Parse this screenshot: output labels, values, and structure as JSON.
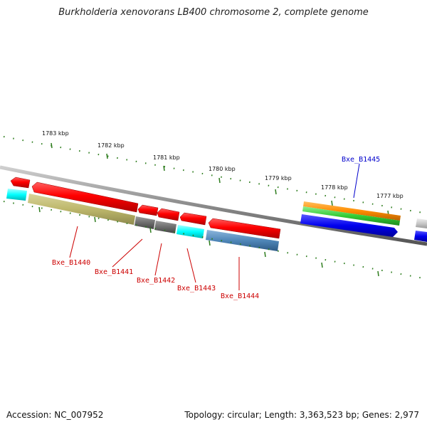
{
  "title": "Burkholderia xenovorans LB400 chromosome 2, complete genome",
  "footer": {
    "accession": "Accession: NC_007952",
    "summary": "Topology: circular; Length: 3,363,523 bp; Genes: 2,977"
  },
  "ruler_unit": "kbp",
  "ruler_ticks": [
    {
      "kbp": 1783,
      "label": "1783 kbp"
    },
    {
      "kbp": 1782,
      "label": "1782 kbp"
    },
    {
      "kbp": 1781,
      "label": "1781 kbp"
    },
    {
      "kbp": 1780,
      "label": "1780 kbp"
    },
    {
      "kbp": 1779,
      "label": "1779 kbp"
    },
    {
      "kbp": 1778,
      "label": "1778 kbp"
    },
    {
      "kbp": 1777,
      "label": "1777 kbp"
    }
  ],
  "gene_labels": [
    {
      "name": "Bxe_B1440",
      "color": "#cc0000"
    },
    {
      "name": "Bxe_B1441",
      "color": "#cc0000"
    },
    {
      "name": "Bxe_B1442",
      "color": "#cc0000"
    },
    {
      "name": "Bxe_B1443",
      "color": "#cc0000"
    },
    {
      "name": "Bxe_B1444",
      "color": "#cc0000"
    },
    {
      "name": "Bxe_B1445",
      "color": "#0000cc"
    }
  ],
  "colors": {
    "backbone": "#8a8a8a",
    "tick": "#2e7d1e",
    "cds": "#ff0000",
    "khaki": "#bdb76b",
    "grey": "#6e6e6e",
    "cyan": "#00ffff",
    "steelblue": "#4f86b8",
    "orange": "#ff8c00",
    "green": "#33cc33",
    "blue": "#0000ee",
    "lightgrey": "#c8c8c8"
  }
}
